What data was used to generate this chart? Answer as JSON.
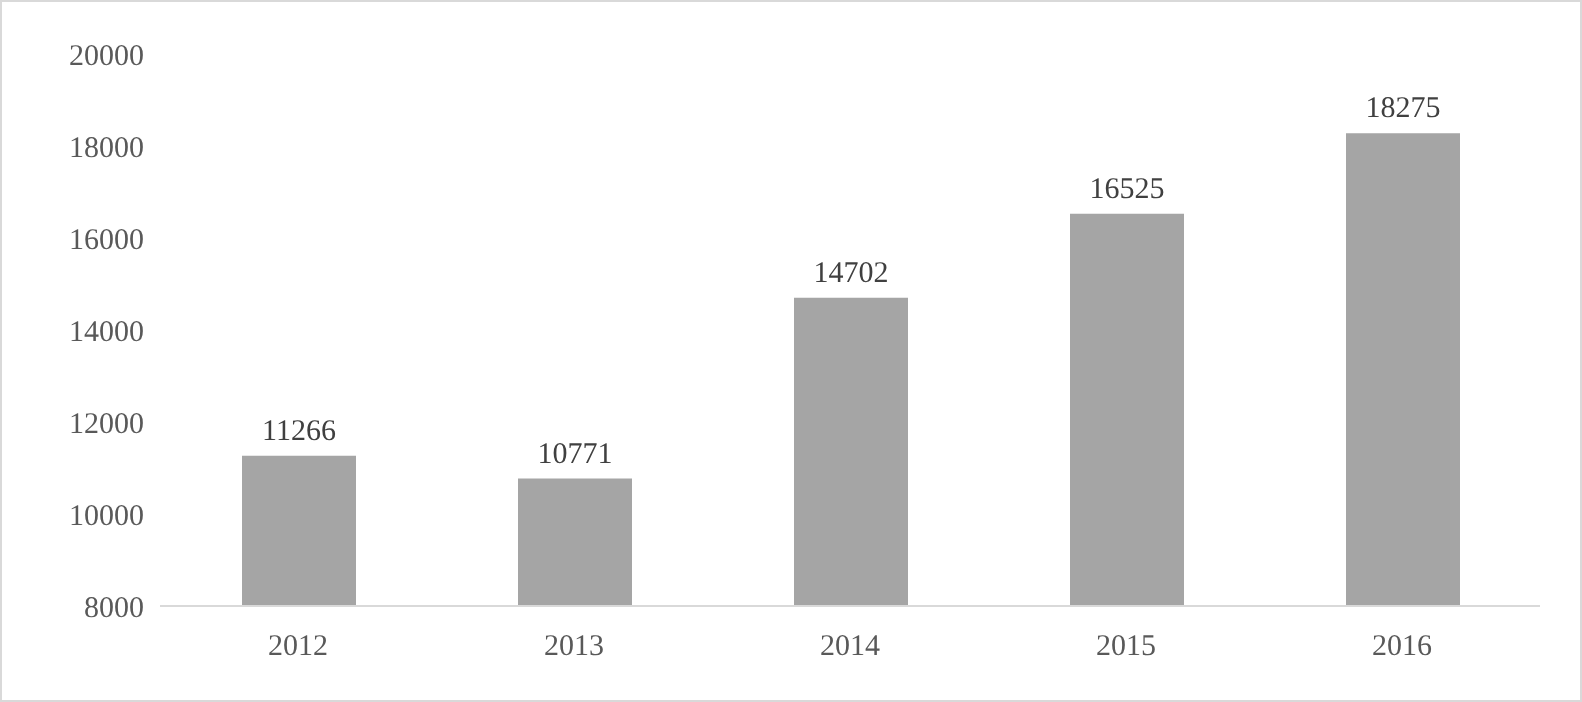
{
  "chart_data": {
    "type": "bar",
    "categories": [
      "2012",
      "2013",
      "2014",
      "2015",
      "2016"
    ],
    "values": [
      11266,
      10771,
      14702,
      16525,
      18275
    ],
    "color": "#a5a5a5",
    "ylim": [
      8000,
      20000
    ],
    "yticks": [
      8000,
      10000,
      12000,
      14000,
      16000,
      18000,
      20000
    ],
    "grid": false,
    "data_labels": true
  }
}
